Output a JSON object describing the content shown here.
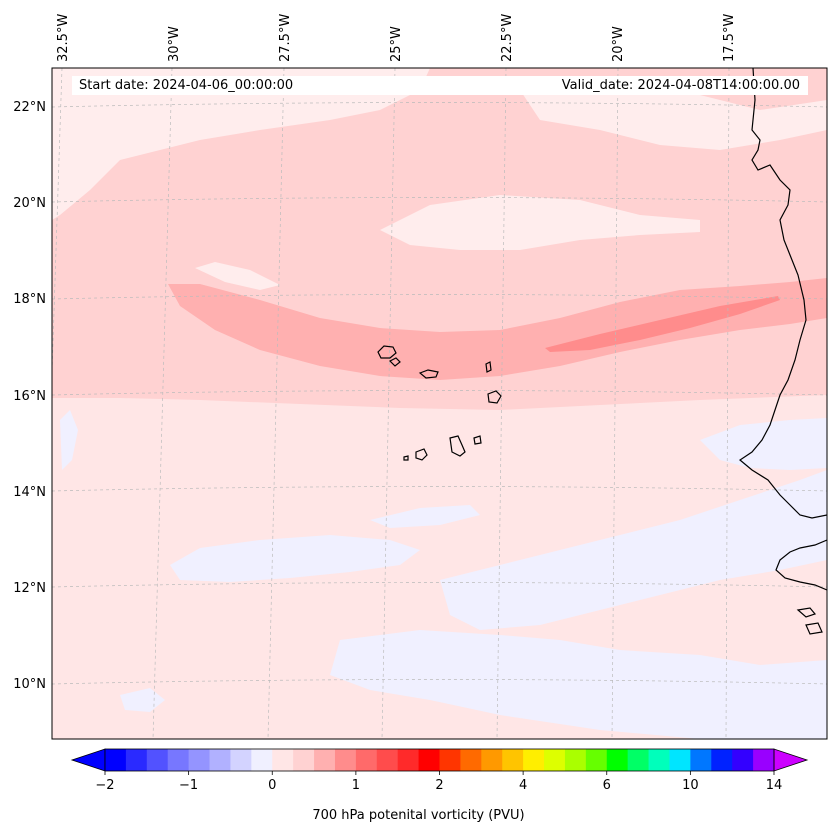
{
  "header": {
    "start_date": "Start date: 2024-04-06_00:00:00",
    "valid_date": "Valid_date: 2024-04-08T14:00:00.00"
  },
  "axes": {
    "lon_labels": [
      "32.5°W",
      "30°W",
      "27.5°W",
      "25°W",
      "22.5°W",
      "20°W",
      "17.5°W"
    ],
    "lat_labels": [
      "22°N",
      "20°N",
      "18°N",
      "16°N",
      "14°N",
      "12°N",
      "10°N"
    ]
  },
  "colorbar": {
    "label": "700 hPa potenital vorticity (PVU)",
    "tick_labels": [
      "−2",
      "−1",
      "0",
      "1",
      "2",
      "4",
      "6",
      "10",
      "14"
    ],
    "colors": [
      "#0000ff",
      "#2a2aff",
      "#5252ff",
      "#7777ff",
      "#9494ff",
      "#b1b1ff",
      "#d3d3ff",
      "#f0f0ff",
      "#ffe6e6",
      "#ffd2d2",
      "#ffb0b0",
      "#ff8c8c",
      "#ff6a6a",
      "#ff4c4c",
      "#ff2a2a",
      "#ff0000",
      "#ff3500",
      "#ff6a00",
      "#ff9900",
      "#ffc400",
      "#ffee00",
      "#ddff00",
      "#aaff00",
      "#66ff00",
      "#00ff00",
      "#00ff66",
      "#00ffbb",
      "#00e5ff",
      "#0077ff",
      "#0022ff",
      "#3300ff",
      "#9900ff"
    ],
    "under_color": "#0000ff",
    "over_color": "#cc00ff"
  },
  "field_colors": {
    "background": "#ffe6e6",
    "light_pink": "#ffd2d2",
    "mid_pink": "#ffb0b0",
    "dark_pink": "#ff8c8c",
    "near_white": "#ffeded",
    "pale_blue": "#f0f0ff",
    "coast": "#000000",
    "gridline": "#bbbbbb"
  }
}
